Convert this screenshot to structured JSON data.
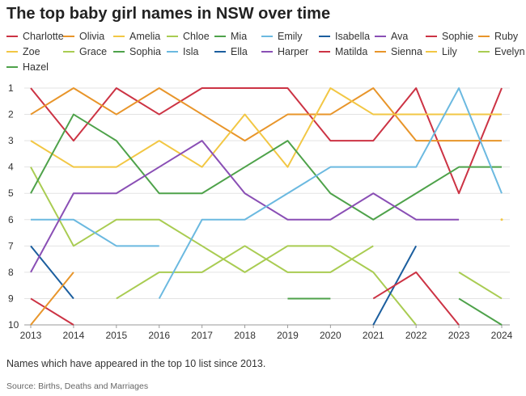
{
  "title": "The top baby girl names in NSW over time",
  "caption": "Names which have appeared in the top 10 list since 2013.",
  "source": "Source: Births, Deaths and Marriages",
  "chart_data": {
    "type": "line",
    "title": "The top baby girl names in NSW over time",
    "xlabel": "",
    "ylabel": "",
    "x": [
      2013,
      2014,
      2015,
      2016,
      2017,
      2018,
      2019,
      2020,
      2021,
      2022,
      2023,
      2024
    ],
    "y_ticks": [
      1,
      2,
      3,
      4,
      5,
      6,
      7,
      8,
      9,
      10
    ],
    "ylim": [
      1,
      10
    ],
    "y_reversed": true,
    "grid": "horizontal",
    "legend": "top",
    "series": [
      {
        "name": "Charlotte",
        "color": "#cc3344",
        "values": [
          1,
          3,
          1,
          2,
          1,
          1,
          1,
          3,
          3,
          1,
          5,
          1
        ]
      },
      {
        "name": "Olivia",
        "color": "#e8952a",
        "values": [
          2,
          1,
          2,
          1,
          2,
          3,
          2,
          2,
          1,
          3,
          3,
          3
        ]
      },
      {
        "name": "Amelia",
        "color": "#f2c744",
        "values": [
          3,
          4,
          4,
          3,
          4,
          2,
          4,
          1,
          2,
          2,
          2,
          2
        ]
      },
      {
        "name": "Chloe",
        "color": "#a9cc52",
        "values": [
          4,
          7,
          6,
          6,
          7,
          8,
          7,
          7,
          8,
          10,
          null,
          null
        ]
      },
      {
        "name": "Mia",
        "color": "#4ea24a",
        "values": [
          5,
          2,
          3,
          5,
          5,
          4,
          3,
          5,
          6,
          5,
          4,
          4
        ]
      },
      {
        "name": "Emily",
        "color": "#6bb9e0",
        "values": [
          6,
          6,
          7,
          7,
          null,
          null,
          null,
          null,
          null,
          null,
          null,
          null
        ]
      },
      {
        "name": "Isabella",
        "color": "#1b5e9e",
        "values": [
          7,
          9,
          null,
          null,
          null,
          null,
          null,
          null,
          null,
          null,
          null,
          null
        ]
      },
      {
        "name": "Ava",
        "color": "#8a4fb5",
        "values": [
          8,
          5,
          5,
          4,
          3,
          5,
          6,
          6,
          5,
          6,
          6,
          null
        ]
      },
      {
        "name": "Sophie",
        "color": "#cc3344",
        "values": [
          9,
          10,
          null,
          null,
          null,
          null,
          null,
          null,
          null,
          null,
          null,
          null
        ]
      },
      {
        "name": "Ruby",
        "color": "#e8952a",
        "values": [
          10,
          8,
          null,
          null,
          null,
          null,
          null,
          null,
          null,
          null,
          null,
          null
        ]
      },
      {
        "name": "Zoe",
        "color": "#f2c744",
        "values": [
          null,
          null,
          null,
          null,
          null,
          null,
          null,
          null,
          null,
          null,
          null,
          6
        ]
      },
      {
        "name": "Grace",
        "color": "#a9cc52",
        "values": [
          null,
          null,
          9,
          8,
          8,
          7,
          8,
          8,
          7,
          null,
          8,
          9
        ]
      },
      {
        "name": "Sophia",
        "color": "#4ea24a",
        "values": [
          null,
          null,
          null,
          null,
          null,
          null,
          9,
          9,
          null,
          null,
          9,
          10
        ]
      },
      {
        "name": "Isla",
        "color": "#6bb9e0",
        "values": [
          null,
          null,
          null,
          9,
          6,
          6,
          5,
          4,
          4,
          4,
          1,
          5
        ]
      },
      {
        "name": "Ella",
        "color": "#1b5e9e",
        "values": [
          null,
          null,
          null,
          null,
          null,
          null,
          null,
          null,
          10,
          7,
          null,
          null
        ]
      },
      {
        "name": "Harper",
        "color": "#8a4fb5",
        "values": [
          null,
          null,
          null,
          null,
          null,
          null,
          null,
          null,
          null,
          null,
          null,
          null
        ]
      },
      {
        "name": "Matilda",
        "color": "#cc3344",
        "values": [
          null,
          null,
          null,
          null,
          null,
          null,
          null,
          null,
          9,
          8,
          10,
          null
        ]
      },
      {
        "name": "Sienna",
        "color": "#e8952a",
        "values": [
          null,
          null,
          null,
          null,
          null,
          null,
          null,
          null,
          null,
          null,
          null,
          null
        ]
      },
      {
        "name": "Lily",
        "color": "#f2c744",
        "values": [
          null,
          null,
          null,
          null,
          null,
          null,
          null,
          null,
          null,
          null,
          null,
          null
        ]
      },
      {
        "name": "Evelyn",
        "color": "#a9cc52",
        "values": [
          null,
          null,
          null,
          null,
          null,
          null,
          null,
          null,
          null,
          null,
          null,
          null
        ]
      },
      {
        "name": "Hazel",
        "color": "#4ea24a",
        "values": [
          null,
          null,
          null,
          null,
          null,
          null,
          null,
          null,
          null,
          null,
          null,
          null
        ]
      }
    ]
  }
}
